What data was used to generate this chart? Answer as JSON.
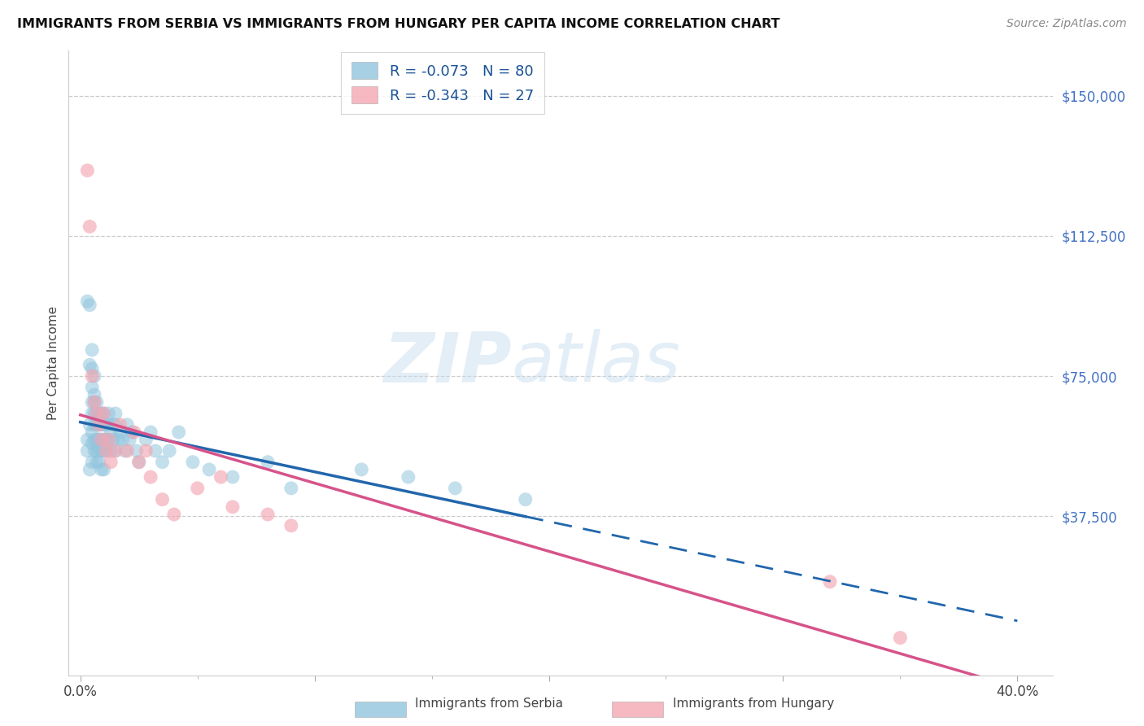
{
  "title": "IMMIGRANTS FROM SERBIA VS IMMIGRANTS FROM HUNGARY PER CAPITA INCOME CORRELATION CHART",
  "source": "Source: ZipAtlas.com",
  "xlabel_ticks": [
    "0.0%",
    "",
    "",
    "",
    "",
    "",
    "",
    "",
    "",
    "40.0%"
  ],
  "xlabel_tick_vals": [
    0.0,
    0.05,
    0.1,
    0.15,
    0.2,
    0.25,
    0.3,
    0.35,
    0.38,
    0.4
  ],
  "ylabel": "Per Capita Income",
  "ylabel_right_ticks": [
    "$150,000",
    "$112,500",
    "$75,000",
    "$37,500"
  ],
  "ylabel_right_vals": [
    150000,
    112500,
    75000,
    37500
  ],
  "ylim": [
    -5000,
    162000
  ],
  "xlim": [
    -0.005,
    0.415
  ],
  "serbia_R": -0.073,
  "serbia_N": 80,
  "hungary_R": -0.343,
  "hungary_N": 27,
  "serbia_color": "#92c5de",
  "hungary_color": "#f4a7b2",
  "serbia_line_color": "#2166ac",
  "hungary_line_color": "#d6538a",
  "watermark_zip": "ZIP",
  "watermark_atlas": "atlas",
  "serbia_scatter_x": [
    0.003,
    0.003,
    0.003,
    0.004,
    0.004,
    0.004,
    0.004,
    0.005,
    0.005,
    0.005,
    0.005,
    0.005,
    0.005,
    0.005,
    0.005,
    0.006,
    0.006,
    0.006,
    0.006,
    0.006,
    0.006,
    0.006,
    0.007,
    0.007,
    0.007,
    0.007,
    0.007,
    0.007,
    0.008,
    0.008,
    0.008,
    0.008,
    0.008,
    0.009,
    0.009,
    0.009,
    0.009,
    0.009,
    0.01,
    0.01,
    0.01,
    0.01,
    0.01,
    0.011,
    0.011,
    0.011,
    0.012,
    0.012,
    0.012,
    0.013,
    0.013,
    0.014,
    0.014,
    0.015,
    0.015,
    0.015,
    0.016,
    0.017,
    0.018,
    0.019,
    0.02,
    0.021,
    0.022,
    0.024,
    0.025,
    0.028,
    0.03,
    0.032,
    0.035,
    0.038,
    0.042,
    0.048,
    0.055,
    0.065,
    0.08,
    0.09,
    0.12,
    0.14,
    0.16,
    0.19
  ],
  "serbia_scatter_y": [
    55000,
    58000,
    95000,
    94000,
    62000,
    50000,
    78000,
    82000,
    77000,
    72000,
    68000,
    65000,
    60000,
    57000,
    52000,
    75000,
    70000,
    68000,
    65000,
    62000,
    58000,
    55000,
    68000,
    65000,
    62000,
    58000,
    55000,
    52000,
    65000,
    62000,
    58000,
    55000,
    52000,
    65000,
    62000,
    58000,
    55000,
    50000,
    65000,
    62000,
    58000,
    55000,
    50000,
    62000,
    58000,
    55000,
    65000,
    62000,
    58000,
    60000,
    55000,
    62000,
    58000,
    65000,
    62000,
    55000,
    58000,
    60000,
    58000,
    55000,
    62000,
    58000,
    60000,
    55000,
    52000,
    58000,
    60000,
    55000,
    52000,
    55000,
    60000,
    52000,
    50000,
    48000,
    52000,
    45000,
    50000,
    48000,
    45000,
    42000
  ],
  "hungary_scatter_x": [
    0.003,
    0.004,
    0.005,
    0.006,
    0.007,
    0.008,
    0.009,
    0.01,
    0.011,
    0.012,
    0.013,
    0.015,
    0.017,
    0.02,
    0.023,
    0.025,
    0.028,
    0.03,
    0.035,
    0.04,
    0.05,
    0.06,
    0.065,
    0.08,
    0.09,
    0.32,
    0.35
  ],
  "hungary_scatter_y": [
    130000,
    115000,
    75000,
    68000,
    65000,
    62000,
    58000,
    65000,
    55000,
    58000,
    52000,
    55000,
    62000,
    55000,
    60000,
    52000,
    55000,
    48000,
    42000,
    38000,
    45000,
    48000,
    40000,
    38000,
    35000,
    20000,
    5000
  ]
}
